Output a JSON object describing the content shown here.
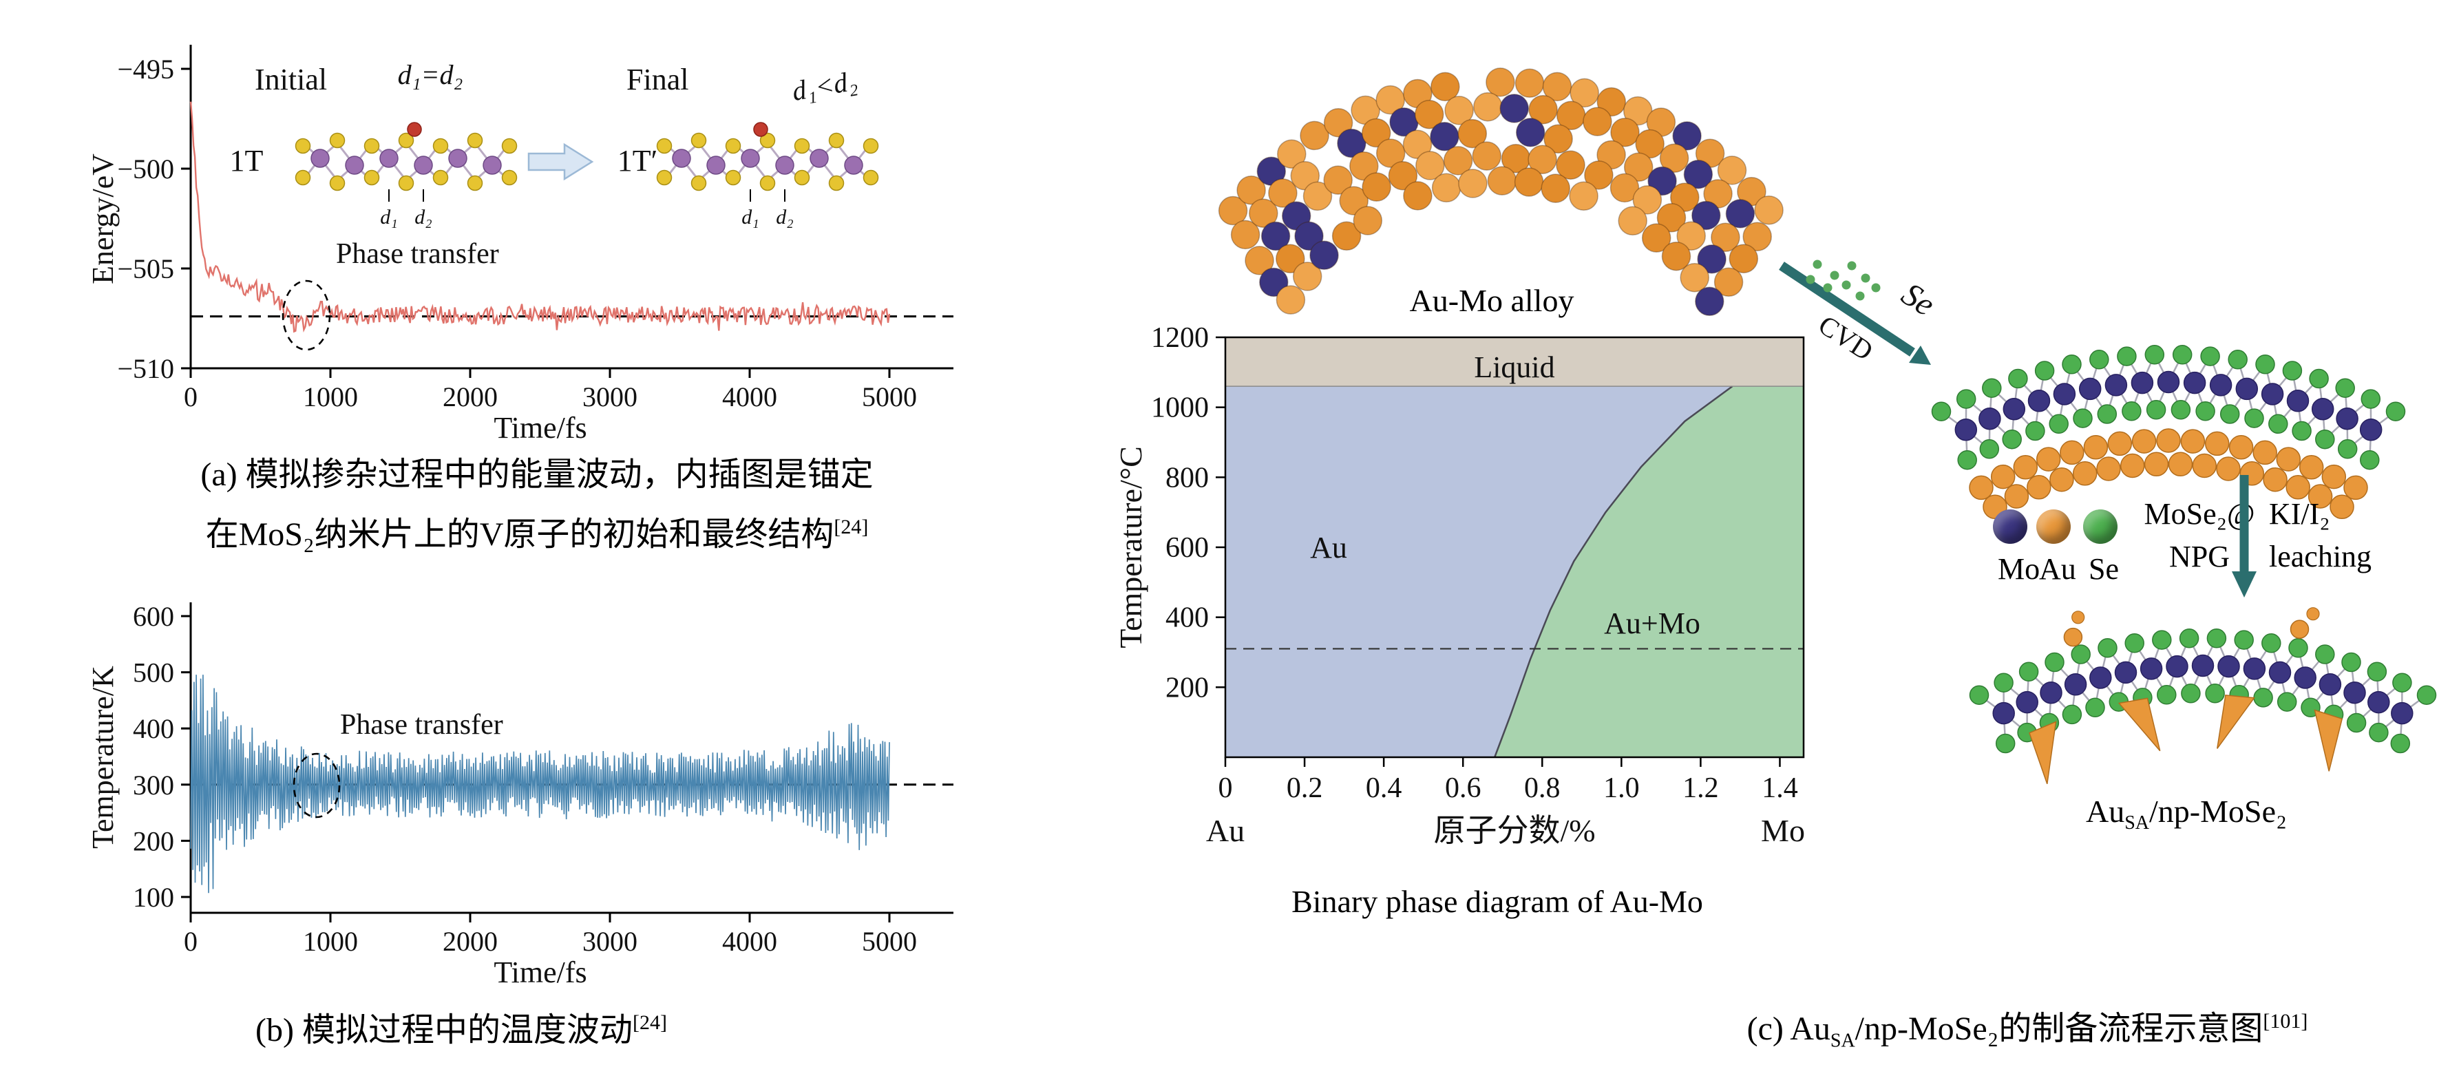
{
  "chart_data": [
    {
      "id": "energy-fluctuation",
      "type": "line",
      "xlabel": "Time/fs",
      "ylabel": "Energy/eV",
      "xlim": [
        0,
        5300
      ],
      "ylim": [
        -511,
        -494
      ],
      "xticks": [
        0,
        1000,
        2000,
        3000,
        4000,
        5000
      ],
      "yticks": [
        -495,
        -500,
        -505,
        -510
      ],
      "grid": false,
      "legend_position": "none",
      "annotation": "Phase transfer",
      "reference_line": -507.4,
      "series": [
        {
          "name": "energy-trace",
          "color": "#e0736b",
          "noise_amp": 0.45,
          "trend": [
            [
              0,
              -496.6
            ],
            [
              20,
              -498.6
            ],
            [
              45,
              -501.2
            ],
            [
              70,
              -503.2
            ],
            [
              100,
              -504.8
            ],
            [
              140,
              -505.2
            ],
            [
              200,
              -505.0
            ],
            [
              280,
              -505.7
            ],
            [
              380,
              -505.9
            ],
            [
              480,
              -506.1
            ],
            [
              560,
              -506.0
            ],
            [
              650,
              -506.8
            ],
            [
              730,
              -507.7
            ],
            [
              820,
              -507.9
            ],
            [
              900,
              -507.1
            ],
            [
              980,
              -507.0
            ],
            [
              1100,
              -507.4
            ],
            [
              1300,
              -507.4
            ],
            [
              1600,
              -507.3
            ],
            [
              2000,
              -507.4
            ],
            [
              2500,
              -507.3
            ],
            [
              3000,
              -507.4
            ],
            [
              3500,
              -507.3
            ],
            [
              4000,
              -507.4
            ],
            [
              4500,
              -507.3
            ],
            [
              5000,
              -507.4
            ]
          ]
        }
      ],
      "inset": {
        "initial_label": "Initial",
        "initial_phase": "1T",
        "initial_relation": "d₁=d₂",
        "final_label": "Final",
        "final_phase": "1T′",
        "final_relation": "d₁<d₂",
        "d1": "d₁",
        "d2": "d₂"
      }
    },
    {
      "id": "temperature-fluctuation",
      "type": "line",
      "xlabel": "Time/fs",
      "ylabel": "Temperature/K",
      "xlim": [
        0,
        5300
      ],
      "ylim": [
        70,
        620
      ],
      "xticks": [
        0,
        1000,
        2000,
        3000,
        4000,
        5000
      ],
      "yticks": [
        100,
        200,
        300,
        400,
        500,
        600
      ],
      "grid": false,
      "annotation": "Phase transfer",
      "reference_line": 300,
      "series": [
        {
          "name": "temperature-trace",
          "color": "#4a86b0",
          "mean": 300,
          "envelope": [
            [
              0,
              130
            ],
            [
              30,
              255
            ],
            [
              80,
              230
            ],
            [
              150,
              190
            ],
            [
              250,
              150
            ],
            [
              350,
              122
            ],
            [
              450,
              102
            ],
            [
              600,
              86
            ],
            [
              800,
              72
            ],
            [
              1000,
              64
            ],
            [
              1400,
              58
            ],
            [
              2000,
              60
            ],
            [
              2600,
              63
            ],
            [
              3200,
              58
            ],
            [
              3800,
              60
            ],
            [
              4300,
              72
            ],
            [
              4600,
              100
            ],
            [
              4800,
              118
            ],
            [
              5000,
              92
            ]
          ]
        }
      ]
    },
    {
      "id": "au-mo-phase-diagram",
      "type": "area",
      "title": "Binary phase diagram of Au-Mo",
      "xlabel": "原子分数/%",
      "ylabel": "Temperature/°C",
      "xlim": [
        0,
        1.46
      ],
      "ylim": [
        0,
        1200
      ],
      "xticks": [
        0,
        0.2,
        0.4,
        0.6,
        0.8,
        1.0,
        1.2,
        1.4
      ],
      "yticks": [
        200,
        400,
        600,
        800,
        1000,
        1200
      ],
      "x_end_labels": [
        "Au",
        "Mo"
      ],
      "region_labels": [
        "Liquid",
        "Au",
        "Au+Mo"
      ],
      "liquidus_T": 1060,
      "solvus_boundary": [
        [
          0.68,
          0
        ],
        [
          0.72,
          120
        ],
        [
          0.77,
          280
        ],
        [
          0.82,
          420
        ],
        [
          0.88,
          560
        ],
        [
          0.96,
          700
        ],
        [
          1.05,
          830
        ],
        [
          1.16,
          960
        ],
        [
          1.28,
          1060
        ]
      ],
      "reference_line": 310,
      "colors": {
        "liquid": "#d6cec2",
        "au_region": "#b9c4de",
        "aumo_region": "#a8d3ae"
      }
    }
  ],
  "captions": {
    "a_line1": "(a) 模拟掺杂过程中的能量波动，内插图是锚定",
    "a_line2": "在MoS₂纳米片上的V原子的初始和最终结构",
    "a_ref": "[24]",
    "b_text": "(b) 模拟过程中的温度波动",
    "b_ref": "[24]",
    "c_pre": "(c) Au",
    "c_sub": "SA",
    "c_mid": "/np-MoSe₂的制备流程示意图",
    "c_ref": "[101]"
  },
  "panel_c": {
    "alloy_label": "Au-Mo alloy",
    "cvd_label": "CVD",
    "se_label": "Se",
    "legend": {
      "mo": "Mo",
      "au": "Au",
      "se": "Se"
    },
    "mose2_line1": "MoSe₂@",
    "mose2_line2": "NPG",
    "ki_line1": "KI/I₂",
    "ki_line2": "leaching",
    "product_pre": "Au",
    "product_sub": "SA",
    "product_post": "/np-MoSe₂",
    "colors": {
      "mo": "#3b3580",
      "au": "#e8973a",
      "se": "#4db04f",
      "arrow": "#2b6e6e"
    }
  }
}
